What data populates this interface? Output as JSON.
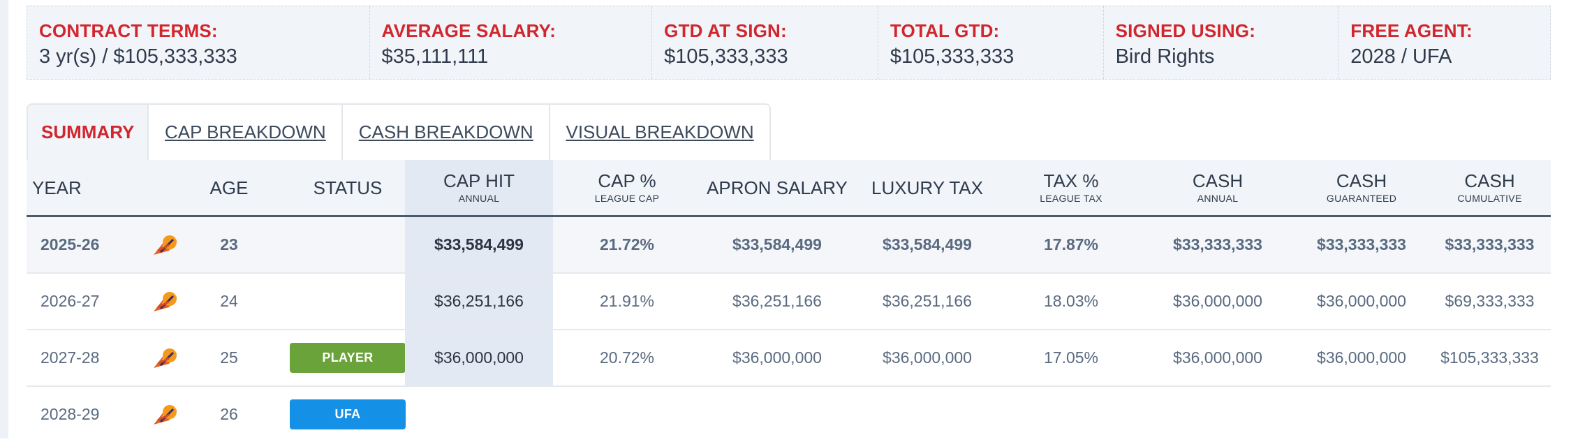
{
  "contract_terms": [
    {
      "label": "CONTRACT TERMS:",
      "value": "3 yr(s) / $105,333,333"
    },
    {
      "label": "AVERAGE SALARY:",
      "value": "$35,111,111"
    },
    {
      "label": "GTD AT SIGN:",
      "value": "$105,333,333"
    },
    {
      "label": "TOTAL GTD:",
      "value": "$105,333,333"
    },
    {
      "label": "SIGNED USING:",
      "value": "Bird Rights"
    },
    {
      "label": "FREE AGENT:",
      "value": "2028 / UFA"
    }
  ],
  "tabs": [
    {
      "label": "SUMMARY",
      "active": true
    },
    {
      "label": "CAP BREAKDOWN",
      "active": false
    },
    {
      "label": "CASH BREAKDOWN",
      "active": false
    },
    {
      "label": "VISUAL BREAKDOWN",
      "active": false
    }
  ],
  "table": {
    "headers": {
      "year": "YEAR",
      "age": "AGE",
      "status": "STATUS",
      "cap_hit": {
        "main": "CAP HIT",
        "sub": "ANNUAL"
      },
      "cap_pct": {
        "main": "CAP %",
        "sub": "LEAGUE CAP"
      },
      "apron": "APRON SALARY",
      "luxury": "LUXURY TAX",
      "tax_pct": {
        "main": "TAX %",
        "sub": "LEAGUE TAX"
      },
      "cash_annual": {
        "main": "CASH",
        "sub": "ANNUAL"
      },
      "cash_guaranteed": {
        "main": "CASH",
        "sub": "GUARANTEED"
      },
      "cash_cumulative": {
        "main": "CASH",
        "sub": "CUMULATIVE"
      }
    },
    "team_icon": "phoenix-suns-logo-icon",
    "rows": [
      {
        "year": "2025-26",
        "age": "23",
        "status": "",
        "cap_hit": "$33,584,499",
        "cap_pct": "21.72%",
        "apron": "$33,584,499",
        "luxury": "$33,584,499",
        "tax_pct": "17.87%",
        "cash_annual": "$33,333,333",
        "cash_guaranteed": "$33,333,333",
        "cash_cumulative": "$33,333,333"
      },
      {
        "year": "2026-27",
        "age": "24",
        "status": "",
        "cap_hit": "$36,251,166",
        "cap_pct": "21.91%",
        "apron": "$36,251,166",
        "luxury": "$36,251,166",
        "tax_pct": "18.03%",
        "cash_annual": "$36,000,000",
        "cash_guaranteed": "$36,000,000",
        "cash_cumulative": "$69,333,333"
      },
      {
        "year": "2027-28",
        "age": "25",
        "status": "PLAYER",
        "cap_hit": "$36,000,000",
        "cap_pct": "20.72%",
        "apron": "$36,000,000",
        "luxury": "$36,000,000",
        "tax_pct": "17.05%",
        "cash_annual": "$36,000,000",
        "cash_guaranteed": "$36,000,000",
        "cash_cumulative": "$105,333,333"
      },
      {
        "year": "2028-29",
        "age": "26",
        "status": "UFA",
        "cap_hit": "",
        "cap_pct": "",
        "apron": "",
        "luxury": "",
        "tax_pct": "",
        "cash_annual": "",
        "cash_guaranteed": "",
        "cash_cumulative": ""
      }
    ]
  },
  "colors": {
    "accent_red": "#d0262e",
    "player_badge": "#6aa33a",
    "ufa_badge": "#1490e6",
    "header_bg": "#f1f4f8"
  }
}
